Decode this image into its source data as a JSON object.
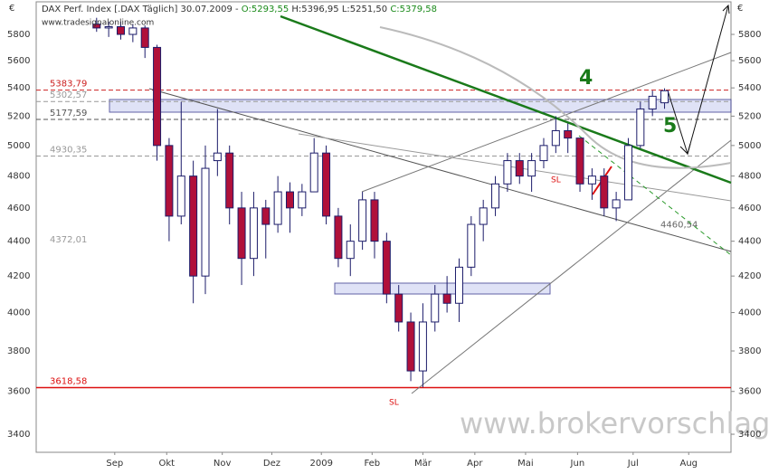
{
  "header": {
    "instrument": "DAX Perf. Index [.DAX Täglich] 30.07.2009 -",
    "open": "O:5293,55",
    "high_low": "H:5396,95 L:5251,50",
    "close": "C:5379,58",
    "source": "www.tradesignalonline.com",
    "currency": "€"
  },
  "chart_data": {
    "type": "candlestick",
    "x": [
      0,
      1,
      2,
      3,
      4,
      5,
      6,
      7,
      8,
      9,
      10,
      11,
      12,
      13,
      14,
      15,
      16,
      17,
      18,
      19,
      20,
      21,
      22,
      23,
      24,
      25,
      26,
      27,
      28,
      29,
      30,
      31,
      32,
      33,
      34,
      35,
      36,
      37,
      38,
      39,
      40,
      41,
      42,
      43,
      44,
      45,
      46,
      47
    ],
    "open": [
      5880,
      5850,
      5860,
      5800,
      5850,
      5700,
      5000,
      4550,
      4800,
      4200,
      4900,
      4950,
      4600,
      4300,
      4600,
      4500,
      4700,
      4600,
      4700,
      4950,
      4550,
      4300,
      4400,
      4650,
      4400,
      4100,
      3950,
      3700,
      3950,
      4100,
      4050,
      4250,
      4500,
      4600,
      4750,
      4900,
      4800,
      4900,
      5000,
      5100,
      5050,
      4750,
      4800,
      4600,
      4650,
      5000,
      5250,
      5293.55
    ],
    "high": [
      5930,
      5900,
      5900,
      5880,
      5870,
      5720,
      5050,
      5300,
      4900,
      5000,
      5250,
      5000,
      4700,
      4700,
      4650,
      4800,
      4760,
      4750,
      5050,
      5000,
      4600,
      4500,
      4700,
      4700,
      4450,
      4150,
      4000,
      4050,
      4150,
      4200,
      4300,
      4550,
      4650,
      4800,
      4950,
      4950,
      4950,
      5050,
      5200,
      5150,
      5050,
      4850,
      4850,
      4700,
      5050,
      5300,
      5380,
      5396.95
    ],
    "low": [
      5820,
      5780,
      5760,
      5740,
      5620,
      4900,
      4400,
      4500,
      4050,
      4100,
      4800,
      4500,
      4150,
      4200,
      4300,
      4450,
      4450,
      4550,
      4700,
      4500,
      4250,
      4200,
      4350,
      4300,
      4050,
      3900,
      3650,
      3620,
      3900,
      4000,
      3950,
      4200,
      4400,
      4550,
      4700,
      4750,
      4700,
      4850,
      4950,
      4950,
      4700,
      4650,
      4550,
      4520,
      4650,
      4980,
      5200,
      5251.5
    ],
    "close": [
      5850,
      5860,
      5800,
      5850,
      5700,
      5000,
      4550,
      4800,
      4200,
      4850,
      4950,
      4600,
      4300,
      4600,
      4500,
      4700,
      4600,
      4700,
      4950,
      4550,
      4300,
      4400,
      4650,
      4400,
      4100,
      3950,
      3700,
      3950,
      4100,
      4050,
      4250,
      4500,
      4600,
      4750,
      4900,
      4800,
      4900,
      5000,
      5100,
      5050,
      4750,
      4800,
      4600,
      4650,
      5000,
      5250,
      5340,
      5379.58
    ],
    "xlim": [
      -5,
      52.5
    ],
    "xticks": [
      {
        "value": 1.5,
        "label": "Sep"
      },
      {
        "value": 5.8,
        "label": "Okt"
      },
      {
        "value": 10.4,
        "label": "Nov"
      },
      {
        "value": 14.5,
        "label": "Dez"
      },
      {
        "value": 18.6,
        "label": "2009"
      },
      {
        "value": 22.8,
        "label": "Feb"
      },
      {
        "value": 27,
        "label": "Mär"
      },
      {
        "value": 31.3,
        "label": "Apr"
      },
      {
        "value": 35.5,
        "label": "Mai"
      },
      {
        "value": 39.8,
        "label": "Jun"
      },
      {
        "value": 44.4,
        "label": "Jul"
      },
      {
        "value": 49,
        "label": "Aug"
      }
    ],
    "ylim": [
      3319,
      5942
    ],
    "yticks": [
      3400,
      3600,
      3800,
      4000,
      4200,
      4400,
      4600,
      4800,
      5000,
      5200,
      5400,
      5600,
      5800
    ],
    "log_scale": true,
    "up_color": "#ffffff",
    "down_color": "#b0103a",
    "outline_color": "#1c1c6a",
    "levels": [
      {
        "value": 5383.79,
        "label": "5383,79",
        "color": "#cc2020",
        "style": "dashed"
      },
      {
        "value": 5302.57,
        "label": "5302,57",
        "color": "#999999",
        "style": "dashed"
      },
      {
        "value": 5177.59,
        "label": "5177,59",
        "color": "#555555",
        "style": "dashed"
      },
      {
        "value": 4930.35,
        "label": "4930,35",
        "color": "#999999",
        "style": "dashed"
      },
      {
        "value": 4372.01,
        "label": "4372,01",
        "color": "#999999",
        "style": "none"
      },
      {
        "value": 4460.54,
        "label": "4460,54",
        "color": "#666666",
        "style": "none"
      },
      {
        "value": 3618.58,
        "label": "3618,58",
        "color": "#dd1010",
        "style": "solid"
      }
    ],
    "annotations": [
      "4",
      "5",
      "SL",
      "SL"
    ],
    "watermark": "www.brokervorschlag.de"
  }
}
